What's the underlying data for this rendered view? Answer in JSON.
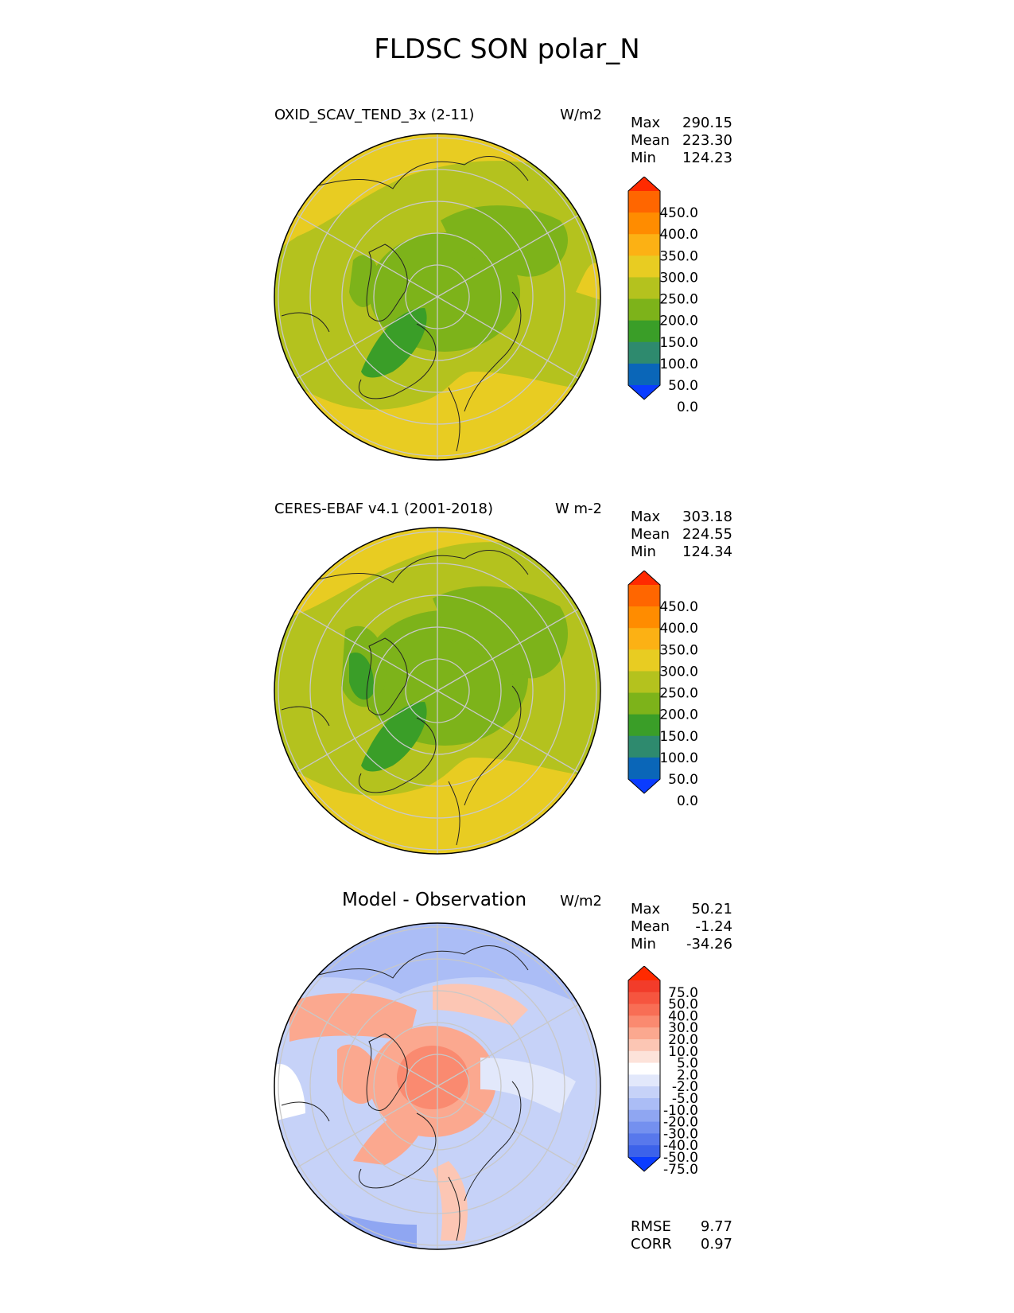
{
  "title": "FLDSC SON polar_N",
  "chart_data": [
    {
      "type": "heatmap",
      "projection": "north-polar-stereographic",
      "title": "OXID_SCAV_TEND_3x (2-11)",
      "units": "W/m2",
      "stats": [
        {
          "label": "Max",
          "value": "290.15"
        },
        {
          "label": "Mean",
          "value": "223.30"
        },
        {
          "label": "Min",
          "value": "124.23"
        }
      ],
      "levels": [
        "450.0",
        "400.0",
        "350.0",
        "300.0",
        "250.0",
        "200.0",
        "150.0",
        "100.0",
        "50.0",
        "0.0"
      ],
      "colorbar_colors": [
        "#ff2a00",
        "#ff6600",
        "#ff8c00",
        "#fcb114",
        "#e8cc22",
        "#b4c21e",
        "#7db31a",
        "#3a9e28",
        "#2e8a6e",
        "#0a66b8",
        "#0a3cff"
      ],
      "grid": true
    },
    {
      "type": "heatmap",
      "projection": "north-polar-stereographic",
      "title": "CERES-EBAF v4.1 (2001-2018)",
      "units": "W m-2",
      "stats": [
        {
          "label": "Max",
          "value": "303.18"
        },
        {
          "label": "Mean",
          "value": "224.55"
        },
        {
          "label": "Min",
          "value": "124.34"
        }
      ],
      "levels": [
        "450.0",
        "400.0",
        "350.0",
        "300.0",
        "250.0",
        "200.0",
        "150.0",
        "100.0",
        "50.0",
        "0.0"
      ],
      "colorbar_colors": [
        "#ff2a00",
        "#ff6600",
        "#ff8c00",
        "#fcb114",
        "#e8cc22",
        "#b4c21e",
        "#7db31a",
        "#3a9e28",
        "#2e8a6e",
        "#0a66b8",
        "#0a3cff"
      ],
      "grid": true
    },
    {
      "type": "heatmap",
      "projection": "north-polar-stereographic",
      "title": "Model - Observation",
      "units": "W/m2",
      "stats": [
        {
          "label": "Max",
          "value": "50.21"
        },
        {
          "label": "Mean",
          "value": "-1.24"
        },
        {
          "label": "Min",
          "value": "-34.26"
        }
      ],
      "levels": [
        "75.0",
        "50.0",
        "40.0",
        "30.0",
        "20.0",
        "10.0",
        "5.0",
        "2.0",
        "-2.0",
        "-5.0",
        "-10.0",
        "-20.0",
        "-30.0",
        "-40.0",
        "-50.0",
        "-75.0"
      ],
      "colorbar_colors": [
        "#ff2a00",
        "#f23c2a",
        "#f6553f",
        "#f86e55",
        "#fa8a70",
        "#fba88f",
        "#fcc6b4",
        "#fde3da",
        "#ffffff",
        "#e2e8fb",
        "#c6d2f8",
        "#abbdf6",
        "#8fa6f2",
        "#7490ef",
        "#5878ec",
        "#3c62ea",
        "#0a3cff"
      ],
      "footer": [
        {
          "label": "RMSE",
          "value": "9.77"
        },
        {
          "label": "CORR",
          "value": "0.97"
        }
      ],
      "grid": true
    }
  ]
}
